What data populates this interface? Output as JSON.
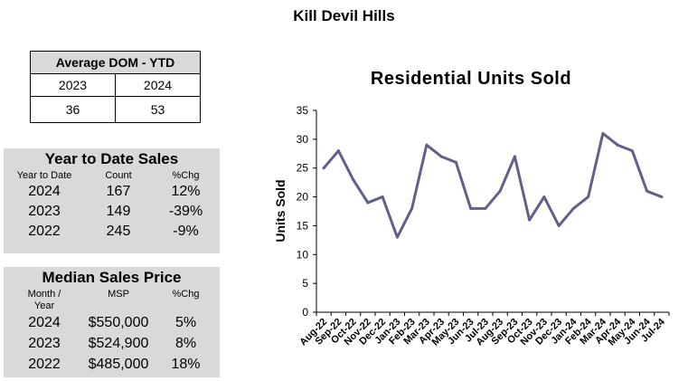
{
  "page_title": "Kill Devil Hills",
  "avg_dom": {
    "title": "Average DOM - YTD",
    "years": [
      "2023",
      "2024"
    ],
    "values": [
      "36",
      "53"
    ]
  },
  "ytd_sales": {
    "title": "Year to Date Sales",
    "headers": [
      "Year to Date",
      "Count",
      "%Chg"
    ],
    "rows": [
      [
        "2024",
        "167",
        "12%"
      ],
      [
        "2023",
        "149",
        "-39%"
      ],
      [
        "2022",
        "245",
        "-9%"
      ]
    ]
  },
  "median_price": {
    "title": "Median Sales Price",
    "headers": [
      "Month /\nYear",
      "MSP",
      "%Chg"
    ],
    "rows": [
      [
        "2024",
        "$550,000",
        "5%"
      ],
      [
        "2023",
        "$524,900",
        "8%"
      ],
      [
        "2022",
        "$485,000",
        "18%"
      ]
    ]
  },
  "chart_data": {
    "type": "line",
    "title": "Residential Units Sold",
    "xlabel": "",
    "ylabel": "Units Sold",
    "ylim": [
      0,
      35
    ],
    "yticks": [
      0,
      5,
      10,
      15,
      20,
      25,
      30,
      35
    ],
    "grid": false,
    "line_color": "#60608a",
    "categories": [
      "Aug-22",
      "Sep-22",
      "Oct-22",
      "Nov-22",
      "Dec-22",
      "Jan-23",
      "Feb-23",
      "Mar-23",
      "Apr-23",
      "May-23",
      "Jun-23",
      "Jul-23",
      "Aug-23",
      "Sep-23",
      "Oct-23",
      "Nov-23",
      "Dec-23",
      "Jan-24",
      "Feb-24",
      "Mar-24",
      "Apr-24",
      "May-24",
      "Jun-24",
      "Jul-24"
    ],
    "values": [
      25,
      28,
      23,
      19,
      20,
      13,
      18,
      29,
      27,
      26,
      18,
      18,
      21,
      27,
      16,
      20,
      15,
      18,
      20,
      31,
      29,
      28,
      21,
      20
    ]
  }
}
